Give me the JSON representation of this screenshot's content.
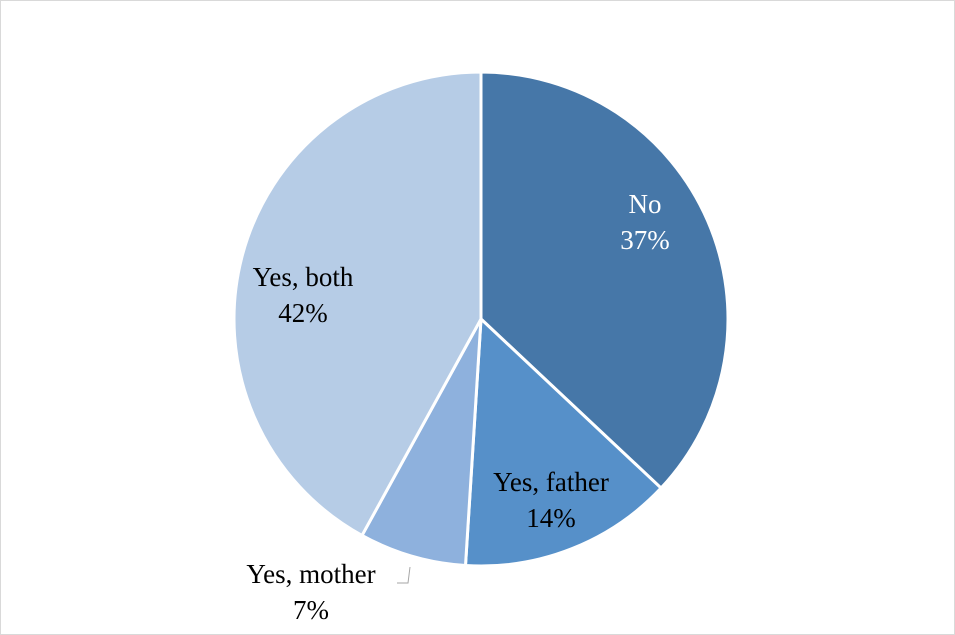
{
  "chart_data": {
    "type": "pie",
    "slices": [
      {
        "label": "No",
        "value": 37,
        "value_label": "37%",
        "color": "#4677a8",
        "label_color": "#ffffff"
      },
      {
        "label": "Yes, father",
        "value": 14,
        "value_label": "14%",
        "color": "#5690c9",
        "label_color": "#000000"
      },
      {
        "label": "Yes, mother",
        "value": 7,
        "value_label": "7%",
        "color": "#8eb1dd",
        "label_color": "#000000"
      },
      {
        "label": "Yes, both",
        "value": 42,
        "value_label": "42%",
        "color": "#b6cce6",
        "label_color": "#000000"
      }
    ],
    "start_angle": "12 o'clock",
    "direction": "clockwise",
    "legend": "none",
    "slice_border_color": "#ffffff"
  }
}
